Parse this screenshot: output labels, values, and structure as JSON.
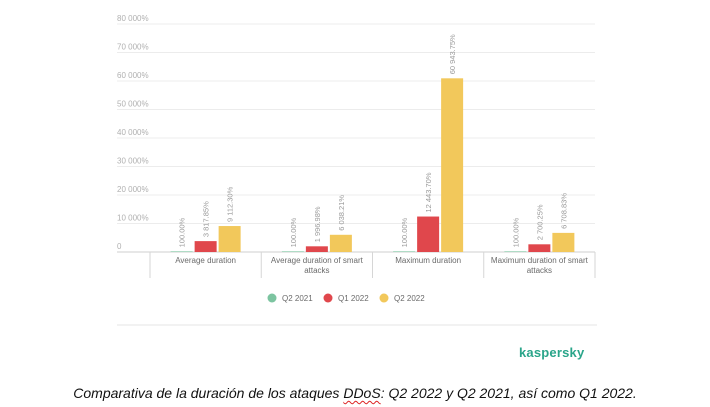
{
  "chart_data": {
    "type": "bar",
    "categories": [
      [
        "Average duration"
      ],
      [
        "Average duration of smart",
        "attacks"
      ],
      [
        "Maximum duration"
      ],
      [
        "Maximum duration of smart",
        "attacks"
      ]
    ],
    "series": [
      {
        "name": "Q2 2021",
        "color": "#7cc4a0",
        "values": [
          100.0,
          100.0,
          100.0,
          100.0
        ],
        "labels": [
          "100.00%",
          "100.00%",
          "100.00%",
          "100.00%"
        ]
      },
      {
        "name": "Q1 2022",
        "color": "#e0474c",
        "values": [
          3817.85,
          1996.98,
          12443.7,
          2700.25
        ],
        "labels": [
          "3 817.85%",
          "1 996.98%",
          "12 443.70%",
          "2 700.25%"
        ]
      },
      {
        "name": "Q2 2022",
        "color": "#f2c85b",
        "values": [
          9112.3,
          6038.21,
          60943.75,
          6708.83
        ],
        "labels": [
          "9 112.30%",
          "6 038.21%",
          "60 943.75%",
          "6 708.83%"
        ]
      }
    ],
    "yticks": [
      {
        "v": 0,
        "label": "0"
      },
      {
        "v": 10000,
        "label": "10 000%"
      },
      {
        "v": 20000,
        "label": "20 000%"
      },
      {
        "v": 30000,
        "label": "30 000%"
      },
      {
        "v": 40000,
        "label": "40 000%"
      },
      {
        "v": 50000,
        "label": "50 000%"
      },
      {
        "v": 60000,
        "label": "60 000%"
      },
      {
        "v": 70000,
        "label": "70 000%"
      },
      {
        "v": 80000,
        "label": "80 000%"
      }
    ],
    "ylim": [
      0,
      80000
    ],
    "legend_position": "bottom-center",
    "title": "",
    "xlabel": "",
    "ylabel": ""
  },
  "brand": "kaspersky",
  "caption": {
    "before": "Comparativa de la duración de los ataques ",
    "flagged": "DDoS",
    "after": ": Q2 2022 y Q2 2021, así como Q1 2022."
  }
}
